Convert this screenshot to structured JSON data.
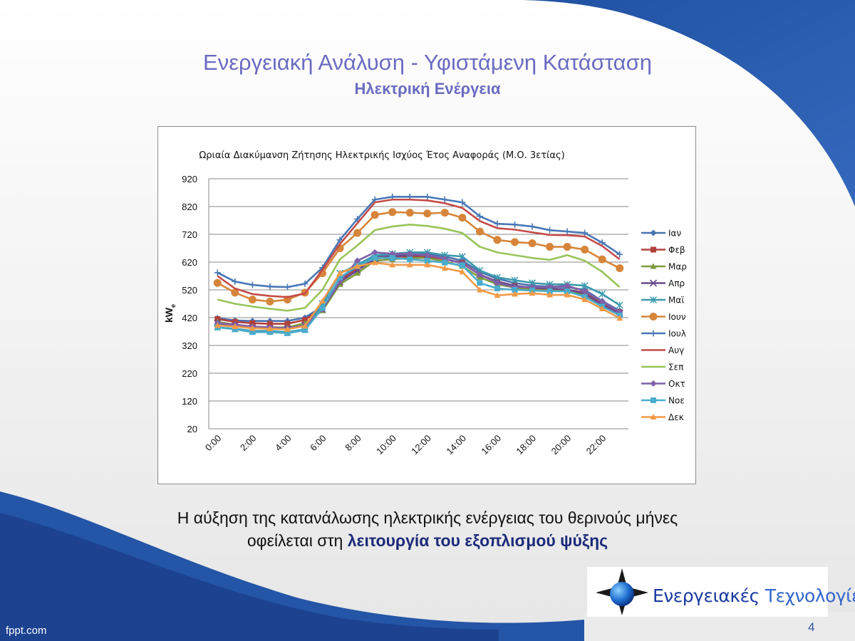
{
  "slide": {
    "title": "Ενεργειακή Ανάλυση - Υφιστάμενη Κατάσταση",
    "subtitle": "Ηλεκτρική Ενέργεια",
    "caption_line1": "Η αύξηση της κατανάλωσης ηλεκτρικής ενέργειας του θερινούς μήνες",
    "caption_line2_plain": "οφείλεται στη ",
    "caption_line2_bold": "λειτουργία του εξοπλισμού ψύξης",
    "page_number": "4",
    "footer_brand": "fppt.com",
    "logo_word1": "Ενεργειακές",
    "logo_word2": "Τεχνολογίες",
    "colors": {
      "title": "#6b6bc2",
      "caption_bold": "#1c2a7a",
      "background_blue": "#2a55a8"
    }
  },
  "chart_data": {
    "type": "line",
    "title": "Ωριαία Διακύμανση Ζήτησης Ηλεκτρικής Ισχύος Έτος Αναφοράς (Μ.Ο. 3ετίας)",
    "xlabel": "",
    "ylabel": "kW",
    "ylabel_sub": "e",
    "x": [
      0,
      1,
      2,
      3,
      4,
      5,
      6,
      7,
      8,
      9,
      10,
      11,
      12,
      13,
      14,
      15,
      16,
      17,
      18,
      19,
      20,
      21,
      22,
      23
    ],
    "xtick_labels": [
      "0:00",
      "2:00",
      "4:00",
      "6:00",
      "8:00",
      "10:00",
      "12:00",
      "14:00",
      "16:00",
      "18:00",
      "20:00",
      "22:00"
    ],
    "yticks": [
      20,
      120,
      220,
      320,
      420,
      520,
      620,
      720,
      820,
      920
    ],
    "ylim": [
      20,
      920
    ],
    "grid": true,
    "legend_position": "right",
    "series": [
      {
        "name": "Ιαν",
        "color": "#4a72b0",
        "marker": "diamond",
        "values": [
          418,
          410,
          408,
          408,
          408,
          420,
          460,
          560,
          600,
          640,
          645,
          650,
          650,
          640,
          625,
          585,
          560,
          545,
          535,
          532,
          530,
          520,
          480,
          445
        ]
      },
      {
        "name": "Φεβ",
        "color": "#b0413e",
        "marker": "square",
        "values": [
          415,
          405,
          400,
          398,
          398,
          412,
          455,
          555,
          595,
          635,
          640,
          640,
          640,
          630,
          618,
          575,
          550,
          535,
          525,
          522,
          520,
          510,
          470,
          440
        ]
      },
      {
        "name": "Μαρ",
        "color": "#7e9b3d",
        "marker": "triangle",
        "values": [
          405,
          395,
          388,
          385,
          385,
          400,
          445,
          540,
          580,
          625,
          630,
          635,
          635,
          622,
          605,
          565,
          540,
          528,
          520,
          518,
          515,
          500,
          462,
          432
        ]
      },
      {
        "name": "Απρ",
        "color": "#6a4a8c",
        "marker": "x",
        "values": [
          400,
          390,
          383,
          380,
          380,
          392,
          450,
          548,
          590,
          632,
          640,
          645,
          645,
          632,
          615,
          575,
          550,
          535,
          528,
          525,
          522,
          506,
          466,
          436
        ]
      },
      {
        "name": "Μαϊ",
        "color": "#3c9aae",
        "marker": "asterisk",
        "values": [
          385,
          380,
          372,
          372,
          368,
          378,
          470,
          580,
          610,
          645,
          650,
          655,
          655,
          645,
          640,
          590,
          565,
          555,
          545,
          540,
          540,
          535,
          505,
          465
        ]
      },
      {
        "name": "Ιουν",
        "color": "#d6853a",
        "marker": "circle",
        "values": [
          545,
          510,
          485,
          478,
          485,
          510,
          580,
          670,
          725,
          790,
          800,
          798,
          795,
          798,
          780,
          730,
          700,
          692,
          688,
          675,
          675,
          665,
          630,
          598
        ]
      },
      {
        "name": "Ιουλ",
        "color": "#4878b6",
        "marker": "plus",
        "values": [
          582,
          550,
          538,
          532,
          530,
          542,
          600,
          700,
          775,
          845,
          855,
          855,
          855,
          845,
          835,
          785,
          758,
          755,
          748,
          735,
          730,
          725,
          690,
          648
        ]
      },
      {
        "name": "Αυγ",
        "color": "#c34b48",
        "marker": "none",
        "values": [
          570,
          525,
          505,
          498,
          494,
          507,
          592,
          685,
          760,
          835,
          845,
          845,
          842,
          832,
          815,
          768,
          742,
          737,
          727,
          718,
          717,
          712,
          678,
          630
        ]
      },
      {
        "name": "Σεπ",
        "color": "#98c45a",
        "marker": "none",
        "values": [
          485,
          470,
          460,
          452,
          445,
          455,
          520,
          630,
          680,
          735,
          748,
          755,
          750,
          740,
          725,
          675,
          655,
          645,
          635,
          628,
          645,
          625,
          585,
          530
        ]
      },
      {
        "name": "Οκτ",
        "color": "#8060a8",
        "marker": "diamond",
        "values": [
          400,
          395,
          388,
          385,
          382,
          392,
          450,
          552,
          625,
          655,
          650,
          650,
          645,
          632,
          615,
          575,
          545,
          530,
          530,
          530,
          535,
          515,
          478,
          440
        ]
      },
      {
        "name": "Νοε",
        "color": "#4aaccc",
        "marker": "square",
        "values": [
          385,
          378,
          368,
          368,
          364,
          375,
          455,
          565,
          605,
          635,
          635,
          630,
          625,
          618,
          608,
          545,
          525,
          520,
          518,
          515,
          515,
          495,
          460,
          428
        ]
      },
      {
        "name": "Δεκ",
        "color": "#f19a48",
        "marker": "triangle",
        "values": [
          392,
          388,
          382,
          380,
          378,
          390,
          480,
          580,
          605,
          618,
          610,
          610,
          610,
          598,
          585,
          520,
          500,
          505,
          508,
          502,
          502,
          485,
          452,
          418
        ]
      }
    ]
  }
}
